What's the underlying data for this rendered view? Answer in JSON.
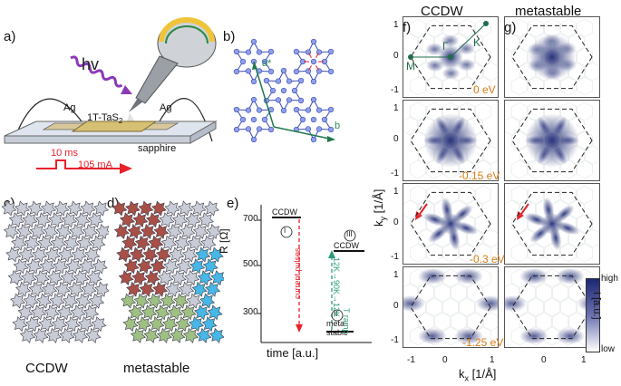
{
  "panel_labels": {
    "a": "a)",
    "b": "b)",
    "c": "c)",
    "d": "d)",
    "e": "e)",
    "f": "f)",
    "g": "g)"
  },
  "panel_a": {
    "hv": "hv",
    "ag_left": "Ag",
    "ag_right": "Ag",
    "sample": "1T-TaS",
    "sample_sub": "2",
    "substrate": "sapphire",
    "pulse_width": "10 ms",
    "pulse_current": "105 mA"
  },
  "panel_b": {
    "a_star": "a*",
    "b_label": "b"
  },
  "panel_c": {
    "caption": "CCDW"
  },
  "panel_d": {
    "caption": "metastable"
  },
  "panel_e": {
    "ylabel": "R [Ω]",
    "xlabel": "time [a.u.]",
    "yticks": [
      "700",
      "500",
      "300"
    ],
    "state1_label": "CCDW",
    "state1_num": "I",
    "state2_label_1": "meta-",
    "state2_label_2": "stable",
    "state2_num": "II",
    "state3_label": "CCDW",
    "state3_num": "III",
    "current_pulses": "current pulses",
    "t_ramp_1": "T ramp",
    "t_ramp_2": "12K→90K→12K"
  },
  "arpes": {
    "col_titles": [
      "CCDW",
      "metastable"
    ],
    "energies": [
      "0 eV",
      "-0.15 eV",
      "-0.3 eV",
      "-1.25 eV"
    ],
    "points": {
      "gamma": "Γ",
      "k": "K",
      "m": "M"
    },
    "yticks": [
      "1",
      "0",
      "-1"
    ],
    "xticks": [
      "-1",
      "0",
      "1",
      "0",
      "1"
    ],
    "ylabel": "k",
    "ylabel_sub": "y",
    "ylabel_unit": " [1/Å]",
    "xlabel": "k",
    "xlabel_sub": "x",
    "xlabel_unit": " [1/Å]",
    "colorbar": {
      "high": "high",
      "low": "low",
      "label": "I [a.u.]"
    }
  },
  "colors": {
    "accent_orange": "#d97d14",
    "arrow_red": "#e8202a",
    "teal": "#2c9a7a",
    "intensity": "#1d2873",
    "star_grey": "#c8ccd6",
    "star_red": "#a85048",
    "star_green": "#9fc083",
    "star_blue": "#46b7e6"
  }
}
